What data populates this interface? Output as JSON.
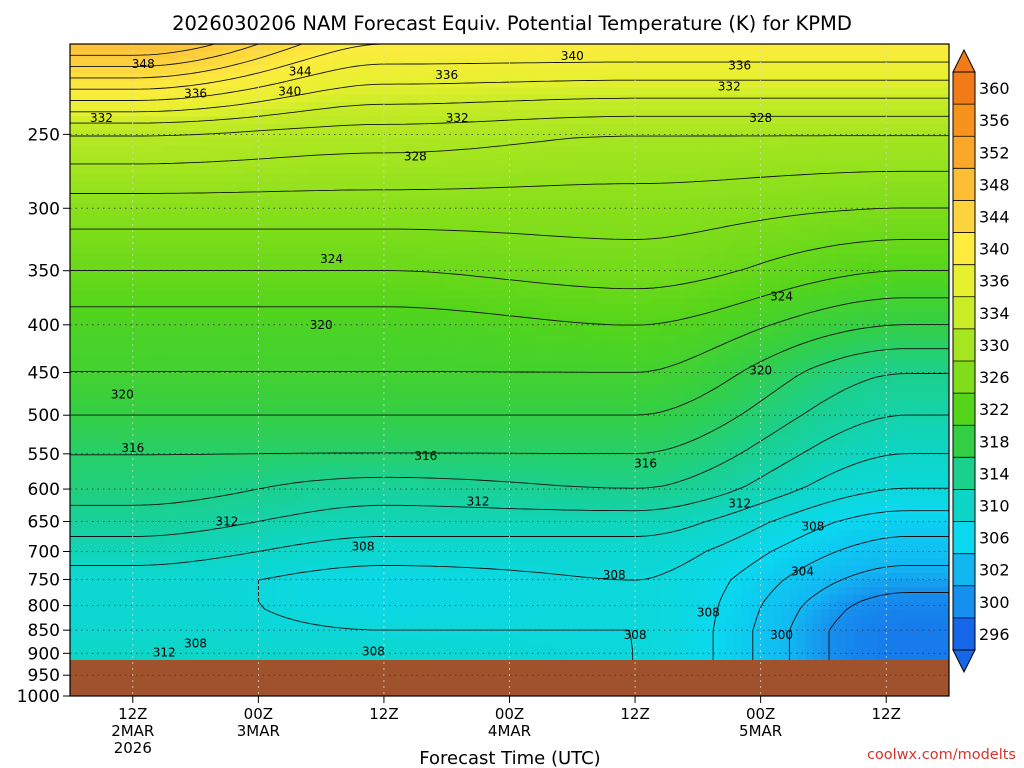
{
  "chart_data": {
    "type": "heatmap",
    "title": "2026030206 NAM Forecast Equiv. Potential Temperature (K) for KPMD",
    "xlabel": "Forecast Time (UTC)",
    "ylabel": "",
    "y_axis": {
      "scale": "log",
      "direction": "inverted",
      "range": [
        200,
        1000
      ],
      "ticks": [
        250,
        300,
        350,
        400,
        450,
        500,
        550,
        600,
        650,
        700,
        750,
        800,
        850,
        900,
        950,
        1000
      ]
    },
    "x_axis": {
      "range": [
        0,
        84
      ],
      "ticks": [
        {
          "hour": 6,
          "lines": [
            "12Z",
            "2MAR",
            "2026"
          ]
        },
        {
          "hour": 18,
          "lines": [
            "00Z",
            "3MAR"
          ]
        },
        {
          "hour": 30,
          "lines": [
            "12Z"
          ]
        },
        {
          "hour": 42,
          "lines": [
            "00Z",
            "4MAR"
          ]
        },
        {
          "hour": 54,
          "lines": [
            "12Z"
          ]
        },
        {
          "hour": 66,
          "lines": [
            "00Z",
            "5MAR"
          ]
        },
        {
          "hour": 78,
          "lines": [
            "12Z"
          ]
        }
      ]
    },
    "surface_pressure": 915,
    "ground_color": "#a0522d",
    "grid": true,
    "colorbar": {
      "placement": "right",
      "labels": [
        360,
        356,
        352,
        348,
        344,
        340,
        336,
        334,
        330,
        326,
        322,
        318,
        314,
        310,
        306,
        302,
        300,
        296
      ],
      "colors": [
        "#f07b17",
        "#f7921d",
        "#fba72a",
        "#fdbe35",
        "#fdd43d",
        "#fdec3e",
        "#e6f02f",
        "#c9ec27",
        "#a6e620",
        "#7fdd1a",
        "#54d51a",
        "#33cf45",
        "#1bd08d",
        "#0ed6c6",
        "#0ad9ef",
        "#12b7f2",
        "#1690ee",
        "#1566e8"
      ]
    },
    "sample_profiles": [
      {
        "hour": 6,
        "points": [
          [
            900,
            310
          ],
          [
            850,
            309
          ],
          [
            800,
            309
          ],
          [
            750,
            309
          ],
          [
            700,
            311
          ],
          [
            650,
            313
          ],
          [
            600,
            315
          ],
          [
            550,
            316
          ],
          [
            500,
            318
          ],
          [
            450,
            320
          ],
          [
            400,
            321
          ],
          [
            350,
            324
          ],
          [
            300,
            327
          ],
          [
            250,
            332
          ],
          [
            200,
            348
          ]
        ]
      },
      {
        "hour": 30,
        "points": [
          [
            900,
            309
          ],
          [
            850,
            308
          ],
          [
            800,
            307
          ],
          [
            750,
            307
          ],
          [
            700,
            309
          ],
          [
            650,
            311
          ],
          [
            600,
            313
          ],
          [
            550,
            316
          ],
          [
            500,
            318
          ],
          [
            450,
            320
          ],
          [
            400,
            321
          ],
          [
            350,
            324
          ],
          [
            300,
            327
          ],
          [
            250,
            331
          ],
          [
            200,
            340
          ]
        ]
      },
      {
        "hour": 54,
        "points": [
          [
            900,
            308
          ],
          [
            850,
            308
          ],
          [
            800,
            308
          ],
          [
            750,
            308
          ],
          [
            700,
            309
          ],
          [
            650,
            311
          ],
          [
            600,
            314
          ],
          [
            550,
            316
          ],
          [
            500,
            318
          ],
          [
            450,
            320
          ],
          [
            400,
            322
          ],
          [
            350,
            325
          ],
          [
            300,
            327
          ],
          [
            250,
            330
          ],
          [
            200,
            340
          ]
        ]
      },
      {
        "hour": 80,
        "points": [
          [
            900,
            298
          ],
          [
            850,
            298
          ],
          [
            800,
            299
          ],
          [
            750,
            301
          ],
          [
            700,
            303
          ],
          [
            650,
            305
          ],
          [
            600,
            308
          ],
          [
            550,
            310
          ],
          [
            500,
            312
          ],
          [
            450,
            314
          ],
          [
            400,
            318
          ],
          [
            350,
            322
          ],
          [
            300,
            326
          ],
          [
            250,
            330
          ],
          [
            200,
            340
          ]
        ]
      }
    ],
    "contour_labels": [
      {
        "text": "348",
        "hour": 7,
        "p": 210
      },
      {
        "text": "344",
        "hour": 22,
        "p": 214
      },
      {
        "text": "336",
        "hour": 36,
        "p": 216
      },
      {
        "text": "340",
        "hour": 48,
        "p": 206
      },
      {
        "text": "336",
        "hour": 64,
        "p": 211
      },
      {
        "text": "332",
        "hour": 63,
        "p": 222
      },
      {
        "text": "336",
        "hour": 12,
        "p": 226
      },
      {
        "text": "340",
        "hour": 21,
        "p": 225
      },
      {
        "text": "332",
        "hour": 3,
        "p": 240
      },
      {
        "text": "332",
        "hour": 37,
        "p": 240
      },
      {
        "text": "328",
        "hour": 66,
        "p": 240
      },
      {
        "text": "328",
        "hour": 33,
        "p": 264
      },
      {
        "text": "324",
        "hour": 25,
        "p": 340
      },
      {
        "text": "324",
        "hour": 68,
        "p": 373
      },
      {
        "text": "320",
        "hour": 24,
        "p": 400
      },
      {
        "text": "320",
        "hour": 66,
        "p": 448
      },
      {
        "text": "320",
        "hour": 5,
        "p": 475
      },
      {
        "text": "316",
        "hour": 6,
        "p": 542
      },
      {
        "text": "316",
        "hour": 34,
        "p": 553
      },
      {
        "text": "316",
        "hour": 55,
        "p": 563
      },
      {
        "text": "312",
        "hour": 15,
        "p": 650
      },
      {
        "text": "312",
        "hour": 39,
        "p": 619
      },
      {
        "text": "312",
        "hour": 64,
        "p": 622
      },
      {
        "text": "308",
        "hour": 28,
        "p": 691
      },
      {
        "text": "308",
        "hour": 52,
        "p": 742
      },
      {
        "text": "308",
        "hour": 71,
        "p": 658
      },
      {
        "text": "304",
        "hour": 70,
        "p": 735
      },
      {
        "text": "308",
        "hour": 61,
        "p": 814
      },
      {
        "text": "308",
        "hour": 54,
        "p": 860
      },
      {
        "text": "300",
        "hour": 68,
        "p": 860
      },
      {
        "text": "308",
        "hour": 12,
        "p": 878
      },
      {
        "text": "312",
        "hour": 9,
        "p": 898
      },
      {
        "text": "308",
        "hour": 29,
        "p": 896
      }
    ]
  },
  "credit": "coolwx.com/modelts"
}
